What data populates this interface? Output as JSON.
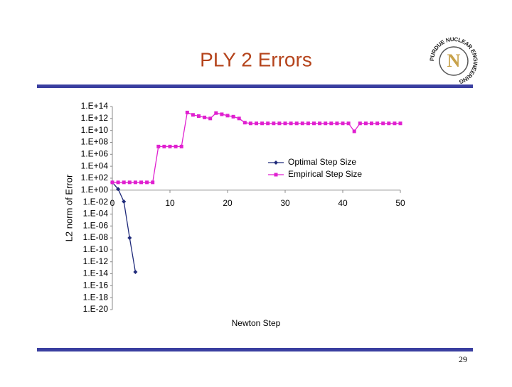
{
  "logo": {
    "letter": "N",
    "text": "PURDUE NUCLEAR ENGINEERING"
  },
  "page_number": "29",
  "chart_data": {
    "type": "line",
    "title": "PLY 2 Errors",
    "x_label": "Newton Step",
    "y_label": "L2 norm of Error",
    "log_y": true,
    "grid": false,
    "legend": "center right",
    "xlim": [
      0,
      50
    ],
    "xticks": [
      0,
      10,
      20,
      30,
      40,
      50
    ],
    "ylim": [
      1e-20,
      100000000000000.0
    ],
    "yticks": [
      {
        "value": 100000000000000.0,
        "label": "1.E+14"
      },
      {
        "value": 1000000000000.0,
        "label": "1.E+12"
      },
      {
        "value": 10000000000.0,
        "label": "1.E+10"
      },
      {
        "value": 100000000.0,
        "label": "1.E+08"
      },
      {
        "value": 1000000.0,
        "label": "1.E+06"
      },
      {
        "value": 10000.0,
        "label": "1.E+04"
      },
      {
        "value": 100,
        "label": "1.E+02"
      },
      {
        "value": 1,
        "label": "1.E+00"
      },
      {
        "value": 0.01,
        "label": "1.E-02"
      },
      {
        "value": 0.0001,
        "label": "1.E-04"
      },
      {
        "value": 1e-06,
        "label": "1.E-06"
      },
      {
        "value": 1e-08,
        "label": "1.E-08"
      },
      {
        "value": 1e-10,
        "label": "1.E-10"
      },
      {
        "value": 1e-12,
        "label": "1.E-12"
      },
      {
        "value": 1e-14,
        "label": "1.E-14"
      },
      {
        "value": 1e-16,
        "label": "1.E-16"
      },
      {
        "value": 1e-18,
        "label": "1.E-18"
      },
      {
        "value": 1e-20,
        "label": "1.E-20"
      }
    ],
    "series": [
      {
        "name": "Optimal Step Size",
        "color": "#1f2a7a",
        "marker": "diamond",
        "x": [
          0,
          1,
          2,
          3,
          4
        ],
        "values": [
          20,
          1.5,
          0.012,
          1e-08,
          2e-14
        ]
      },
      {
        "name": "Empirical Step Size",
        "color": "#e020d0",
        "marker": "square",
        "x": [
          0,
          1,
          2,
          3,
          4,
          5,
          6,
          7,
          8,
          9,
          10,
          11,
          12,
          13,
          14,
          15,
          16,
          17,
          18,
          19,
          20,
          21,
          22,
          23,
          24,
          25,
          26,
          27,
          28,
          29,
          30,
          31,
          32,
          33,
          34,
          35,
          36,
          37,
          38,
          39,
          40,
          41,
          42,
          43,
          44,
          45,
          46,
          47,
          48,
          49,
          50
        ],
        "values": [
          20,
          20,
          20,
          20,
          20,
          20,
          20,
          20,
          20000000.0,
          20000000.0,
          20000000.0,
          20000000.0,
          20000000.0,
          10000000000000.0,
          4000000000000.0,
          2500000000000.0,
          1500000000000.0,
          1000000000000.0,
          8000000000000.0,
          5000000000000.0,
          3000000000000.0,
          2000000000000.0,
          1000000000000.0,
          200000000000.0,
          150000000000.0,
          150000000000.0,
          150000000000.0,
          150000000000.0,
          150000000000.0,
          150000000000.0,
          150000000000.0,
          150000000000.0,
          150000000000.0,
          150000000000.0,
          150000000000.0,
          150000000000.0,
          150000000000.0,
          150000000000.0,
          150000000000.0,
          150000000000.0,
          150000000000.0,
          150000000000.0,
          7000000000.0,
          150000000000.0,
          150000000000.0,
          150000000000.0,
          150000000000.0,
          150000000000.0,
          150000000000.0,
          150000000000.0,
          150000000000.0
        ]
      }
    ]
  }
}
